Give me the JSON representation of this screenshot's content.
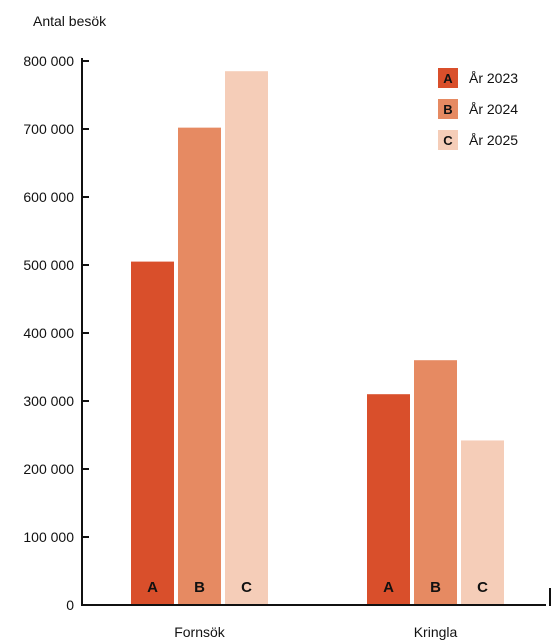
{
  "chart_data": {
    "type": "bar",
    "ylabel": "Antal besök",
    "xlabel": "",
    "ylim": [
      0,
      800000
    ],
    "yticks": [
      0,
      100000,
      200000,
      300000,
      400000,
      500000,
      600000,
      700000,
      800000
    ],
    "ytick_labels": [
      "0",
      "100 000",
      "200 000",
      "300 000",
      "400 000",
      "500 000",
      "600 000",
      "700 000",
      "800 000"
    ],
    "categories": [
      "Fornsök",
      "Kringla"
    ],
    "series": [
      {
        "name": "År 2023",
        "letter": "A",
        "color": "#d94f2b",
        "values": [
          505000,
          310000
        ]
      },
      {
        "name": "År 2024",
        "letter": "B",
        "color": "#e68a62",
        "values": [
          702000,
          360000
        ]
      },
      {
        "name": "År 2025",
        "letter": "C",
        "color": "#f5cdb8",
        "values": [
          785000,
          242000
        ]
      }
    ],
    "legend_position": "top-right",
    "grid": false
  }
}
